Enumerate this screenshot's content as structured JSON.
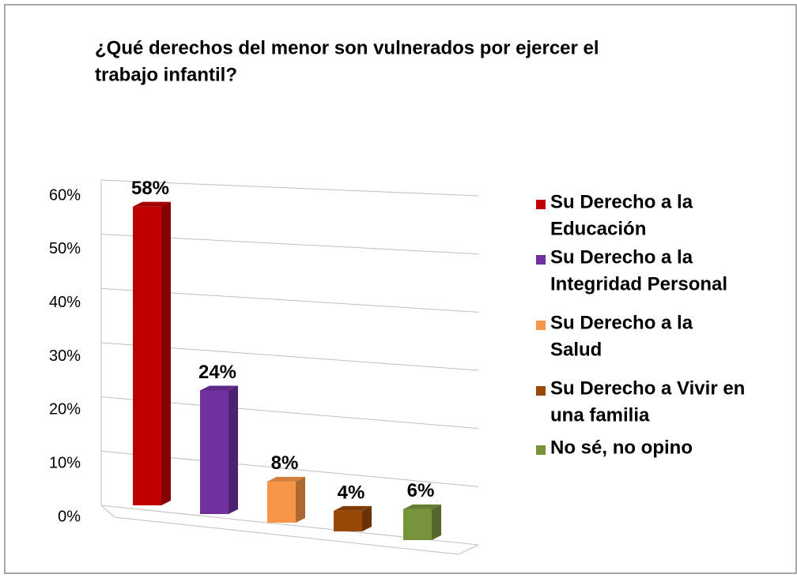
{
  "chart_data": {
    "type": "bar3d",
    "title": [
      "¿Qué derechos del menor son vulnerados por ejercer el",
      "trabajo infantil?"
    ],
    "series": [
      {
        "name": [
          "Su Derecho a la",
          "Educación"
        ],
        "color": "#c00000",
        "values": [
          58
        ],
        "value_labels": [
          "58%"
        ]
      },
      {
        "name": [
          "Su Derecho a la",
          "Integridad Personal"
        ],
        "color": "#7030a0",
        "values": [
          24
        ],
        "value_labels": [
          "24%"
        ]
      },
      {
        "name": [
          "Su Derecho a la",
          "Salud"
        ],
        "color": "#f79646",
        "values": [
          8
        ],
        "value_labels": [
          "8%"
        ]
      },
      {
        "name": [
          "Su Derecho a Vivir en",
          "una familia"
        ],
        "color": "#984807",
        "values": [
          4
        ],
        "value_labels": [
          "4%"
        ]
      },
      {
        "name": [
          "No sé, no opino"
        ],
        "color": "#77933c",
        "values": [
          6
        ],
        "value_labels": [
          "6%"
        ]
      }
    ],
    "ylim": [
      0,
      60
    ],
    "yticks": [
      {
        "value": 0,
        "label": "0%"
      },
      {
        "value": 10,
        "label": "10%"
      },
      {
        "value": 20,
        "label": "20%"
      },
      {
        "value": 30,
        "label": "30%"
      },
      {
        "value": 40,
        "label": "40%"
      },
      {
        "value": 50,
        "label": "50%"
      },
      {
        "value": 60,
        "label": "60%"
      }
    ],
    "grid": true,
    "legend": "right"
  }
}
